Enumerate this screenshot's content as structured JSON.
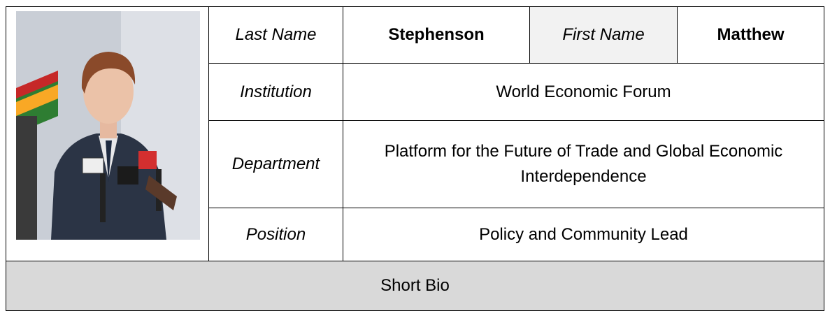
{
  "profile": {
    "last_name_label": "Last Name",
    "last_name": "Stephenson",
    "first_name_label": "First Name",
    "first_name": "Matthew",
    "institution_label": "Institution",
    "institution": "World Economic Forum",
    "department_label": "Department",
    "department": "Platform for the Future of Trade and Global Economic Interdependence",
    "position_label": "Position",
    "position": "Policy and Community Lead",
    "bio_label": "Short Bio"
  }
}
